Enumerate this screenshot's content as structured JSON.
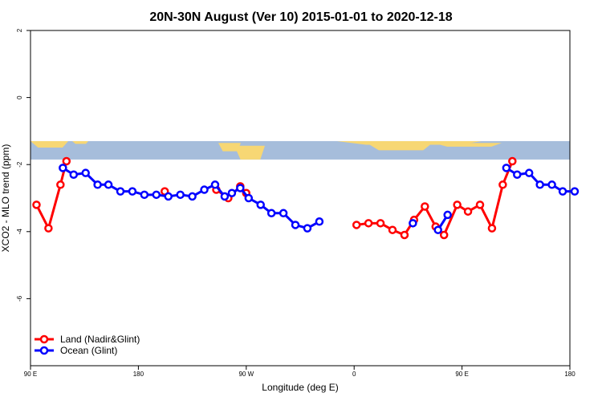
{
  "chart_data": {
    "type": "line",
    "title": "20N-30N August (Ver 10)   2015-01-01 to 2020-12-18",
    "xlabel": "Longitude (deg E)",
    "ylabel": "XCO2 - MLO trend (ppm)",
    "xlim": [
      90,
      540
    ],
    "ylim": [
      -8,
      2
    ],
    "xticks": [
      {
        "value": 90,
        "label": "90 E"
      },
      {
        "value": 180,
        "label": "180"
      },
      {
        "value": 270,
        "label": "90 W"
      },
      {
        "value": 360,
        "label": "0"
      },
      {
        "value": 450,
        "label": "90 E"
      },
      {
        "value": 540,
        "label": "180"
      }
    ],
    "yticks": [
      {
        "value": 2,
        "label": "2"
      },
      {
        "value": 0,
        "label": "0"
      },
      {
        "value": -2,
        "label": "-2"
      },
      {
        "value": -4,
        "label": "-4"
      },
      {
        "value": -6,
        "label": "-6"
      }
    ],
    "map_band": {
      "top": -1.3,
      "bottom": -1.85,
      "ocean_color": "#a6bddb",
      "land_color": "#f7d774"
    },
    "series": [
      {
        "name": "Land (Nadir&Glint)",
        "color": "#ff0000",
        "segments": [
          [
            [
              95,
              -3.2
            ],
            [
              105,
              -3.9
            ],
            [
              115,
              -2.6
            ],
            [
              120,
              -1.9
            ]
          ],
          [
            [
              202,
              -2.8
            ]
          ],
          [
            [
              245,
              -2.75
            ],
            [
              255,
              -3.0
            ],
            [
              265,
              -2.65
            ],
            [
              270,
              -2.85
            ]
          ],
          [
            [
              362,
              -3.8
            ],
            [
              372,
              -3.75
            ],
            [
              382,
              -3.75
            ],
            [
              392,
              -3.95
            ],
            [
              402,
              -4.1
            ],
            [
              410,
              -3.65
            ],
            [
              419,
              -3.25
            ],
            [
              428,
              -3.85
            ],
            [
              435,
              -4.1
            ],
            [
              446,
              -3.2
            ],
            [
              455,
              -3.4
            ],
            [
              465,
              -3.2
            ],
            [
              475,
              -3.9
            ],
            [
              484,
              -2.6
            ],
            [
              492,
              -1.9
            ]
          ]
        ]
      },
      {
        "name": "Ocean (Glint)",
        "color": "#0000ff",
        "segments": [
          [
            [
              117,
              -2.1
            ],
            [
              126,
              -2.3
            ],
            [
              136,
              -2.25
            ],
            [
              146,
              -2.6
            ],
            [
              155,
              -2.6
            ],
            [
              165,
              -2.8
            ],
            [
              175,
              -2.8
            ],
            [
              185,
              -2.9
            ],
            [
              195,
              -2.9
            ],
            [
              205,
              -2.95
            ],
            [
              215,
              -2.9
            ],
            [
              225,
              -2.95
            ],
            [
              235,
              -2.75
            ],
            [
              244,
              -2.6
            ],
            [
              252,
              -2.95
            ],
            [
              258,
              -2.85
            ],
            [
              265,
              -2.7
            ],
            [
              272,
              -3.0
            ],
            [
              282,
              -3.2
            ],
            [
              291,
              -3.45
            ],
            [
              301,
              -3.45
            ],
            [
              311,
              -3.8
            ],
            [
              321,
              -3.9
            ],
            [
              331,
              -3.7
            ]
          ],
          [
            [
              409,
              -3.75
            ]
          ],
          [
            [
              430,
              -3.95
            ],
            [
              438,
              -3.5
            ]
          ],
          [
            [
              487,
              -2.1
            ],
            [
              496,
              -2.3
            ],
            [
              506,
              -2.25
            ],
            [
              515,
              -2.6
            ],
            [
              525,
              -2.6
            ],
            [
              534,
              -2.8
            ],
            [
              544,
              -2.8
            ]
          ]
        ]
      }
    ],
    "legend": {
      "position": "bottom-left"
    }
  }
}
